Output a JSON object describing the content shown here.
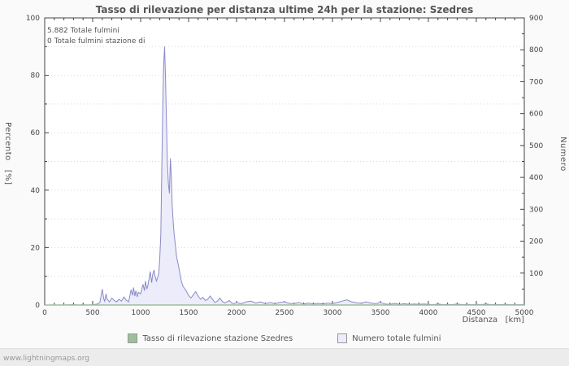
{
  "page": {
    "watermark": "www.lightningmaps.org"
  },
  "chart_data": {
    "type": "area",
    "title": "Tasso di rilevazione per distanza ultime 24h per la stazione: Szedres",
    "xlabel": "Distanza   [km]",
    "ylabel_left": "Percento   [%]",
    "ylabel_right": "Numero",
    "xlim": [
      0,
      5000
    ],
    "ylim_left": [
      0,
      100
    ],
    "ylim_right": [
      0,
      900
    ],
    "x_tick_step": 500,
    "x_minor_step": 100,
    "left_tick_step": 20,
    "left_minor_step": 10,
    "right_tick_step": 100,
    "right_minor_step": 50,
    "grid": true,
    "legend_position": "bottom",
    "annotations": [
      "5.882 Totale fulmini",
      "0 Totale fulmini stazione di"
    ],
    "series": [
      {
        "name": "Tasso di rilevazione stazione Szedres",
        "axis": "left",
        "color": "#9CBF9C",
        "points": [
          [
            0,
            0
          ],
          [
            5000,
            0
          ]
        ]
      },
      {
        "name": "Numero totale fulmini",
        "axis": "right",
        "color": "#8A8AC8",
        "fill": "#ECECFA",
        "points": [
          [
            0,
            0
          ],
          [
            100,
            0
          ],
          [
            200,
            0
          ],
          [
            300,
            1
          ],
          [
            350,
            0
          ],
          [
            400,
            1
          ],
          [
            450,
            0
          ],
          [
            500,
            1
          ],
          [
            525,
            2
          ],
          [
            550,
            3
          ],
          [
            575,
            8
          ],
          [
            600,
            50
          ],
          [
            615,
            20
          ],
          [
            625,
            12
          ],
          [
            640,
            35
          ],
          [
            650,
            18
          ],
          [
            675,
            10
          ],
          [
            700,
            22
          ],
          [
            725,
            14
          ],
          [
            750,
            10
          ],
          [
            775,
            18
          ],
          [
            800,
            12
          ],
          [
            825,
            25
          ],
          [
            850,
            15
          ],
          [
            875,
            10
          ],
          [
            900,
            48
          ],
          [
            915,
            30
          ],
          [
            925,
            55
          ],
          [
            940,
            28
          ],
          [
            950,
            45
          ],
          [
            965,
            25
          ],
          [
            975,
            40
          ],
          [
            1000,
            35
          ],
          [
            1025,
            65
          ],
          [
            1040,
            45
          ],
          [
            1050,
            75
          ],
          [
            1065,
            50
          ],
          [
            1075,
            60
          ],
          [
            1090,
            85
          ],
          [
            1100,
            105
          ],
          [
            1115,
            70
          ],
          [
            1125,
            95
          ],
          [
            1140,
            110
          ],
          [
            1150,
            90
          ],
          [
            1165,
            75
          ],
          [
            1175,
            85
          ],
          [
            1190,
            100
          ],
          [
            1200,
            150
          ],
          [
            1210,
            220
          ],
          [
            1220,
            420
          ],
          [
            1230,
            600
          ],
          [
            1240,
            750
          ],
          [
            1250,
            810
          ],
          [
            1260,
            700
          ],
          [
            1270,
            560
          ],
          [
            1280,
            440
          ],
          [
            1290,
            380
          ],
          [
            1300,
            350
          ],
          [
            1310,
            460
          ],
          [
            1320,
            400
          ],
          [
            1330,
            310
          ],
          [
            1340,
            260
          ],
          [
            1350,
            220
          ],
          [
            1365,
            180
          ],
          [
            1375,
            150
          ],
          [
            1390,
            130
          ],
          [
            1400,
            115
          ],
          [
            1415,
            90
          ],
          [
            1425,
            75
          ],
          [
            1440,
            60
          ],
          [
            1450,
            55
          ],
          [
            1475,
            45
          ],
          [
            1500,
            30
          ],
          [
            1525,
            22
          ],
          [
            1550,
            32
          ],
          [
            1575,
            42
          ],
          [
            1600,
            28
          ],
          [
            1625,
            18
          ],
          [
            1650,
            24
          ],
          [
            1675,
            14
          ],
          [
            1700,
            18
          ],
          [
            1725,
            28
          ],
          [
            1750,
            18
          ],
          [
            1775,
            8
          ],
          [
            1800,
            12
          ],
          [
            1825,
            22
          ],
          [
            1850,
            12
          ],
          [
            1875,
            6
          ],
          [
            1900,
            10
          ],
          [
            1925,
            14
          ],
          [
            1950,
            6
          ],
          [
            1975,
            4
          ],
          [
            2000,
            8
          ],
          [
            2050,
            4
          ],
          [
            2100,
            10
          ],
          [
            2150,
            12
          ],
          [
            2200,
            6
          ],
          [
            2250,
            10
          ],
          [
            2300,
            4
          ],
          [
            2350,
            8
          ],
          [
            2400,
            4
          ],
          [
            2450,
            8
          ],
          [
            2500,
            10
          ],
          [
            2550,
            5
          ],
          [
            2600,
            4
          ],
          [
            2650,
            8
          ],
          [
            2700,
            3
          ],
          [
            2750,
            6
          ],
          [
            2800,
            3
          ],
          [
            2850,
            5
          ],
          [
            2900,
            3
          ],
          [
            2950,
            6
          ],
          [
            3000,
            4
          ],
          [
            3050,
            8
          ],
          [
            3100,
            12
          ],
          [
            3150,
            16
          ],
          [
            3200,
            10
          ],
          [
            3250,
            7
          ],
          [
            3300,
            5
          ],
          [
            3350,
            10
          ],
          [
            3400,
            6
          ],
          [
            3450,
            4
          ],
          [
            3500,
            8
          ],
          [
            3550,
            3
          ],
          [
            3600,
            2
          ],
          [
            3650,
            5
          ],
          [
            3700,
            2
          ],
          [
            3750,
            4
          ],
          [
            3800,
            2
          ],
          [
            3850,
            3
          ],
          [
            3900,
            2
          ],
          [
            3950,
            3
          ],
          [
            4000,
            2
          ],
          [
            4050,
            1
          ],
          [
            4100,
            3
          ],
          [
            4150,
            1
          ],
          [
            4200,
            2
          ],
          [
            4250,
            1
          ],
          [
            4300,
            3
          ],
          [
            4350,
            1
          ],
          [
            4400,
            2
          ],
          [
            4450,
            1
          ],
          [
            4500,
            2
          ],
          [
            4550,
            1
          ],
          [
            4600,
            3
          ],
          [
            4650,
            1
          ],
          [
            4700,
            2
          ],
          [
            4750,
            1
          ],
          [
            4800,
            2
          ],
          [
            4850,
            1
          ],
          [
            4900,
            1
          ],
          [
            4950,
            1
          ],
          [
            5000,
            1
          ]
        ]
      }
    ]
  }
}
